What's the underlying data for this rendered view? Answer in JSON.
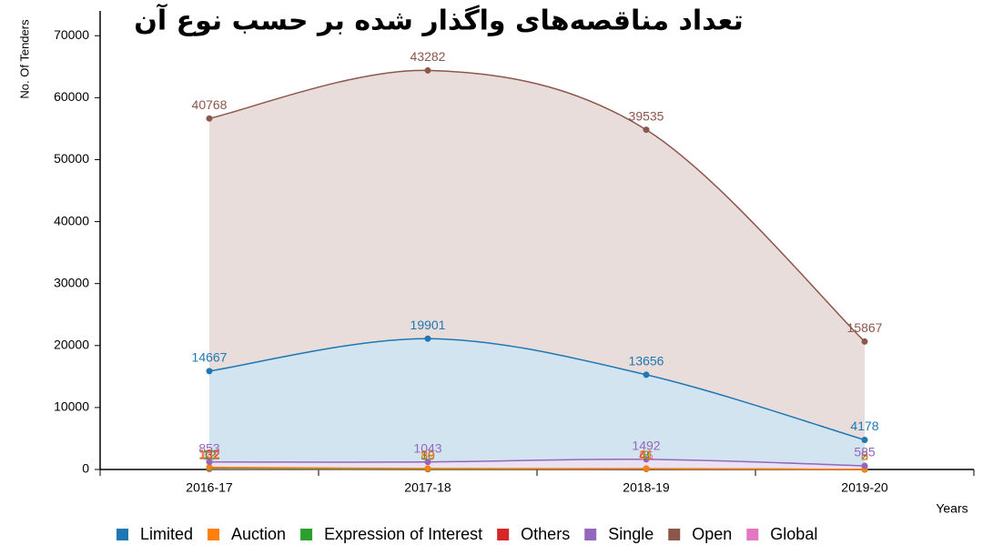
{
  "chart_data": {
    "type": "stacked-area",
    "title": "تعداد مناقصه‌های واگذار شده بر حسب نوع آن",
    "y_label": "No. Of Tenders",
    "x_label": "Years",
    "categories": [
      "2016-17",
      "2017-18",
      "2018-19",
      "2019-20"
    ],
    "series": [
      {
        "name": "Limited",
        "color": "#1f77b4",
        "values": [
          14667,
          19901,
          13656,
          4178
        ]
      },
      {
        "name": "Auction",
        "color": "#ff7f0e",
        "values": [
          152,
          89,
          31,
          5
        ]
      },
      {
        "name": "Expression of Interest",
        "color": "#2ca02c",
        "values": [
          12,
          10,
          8,
          2
        ]
      },
      {
        "name": "Others",
        "color": "#d62728",
        "values": [
          132,
          39,
          41,
          3
        ]
      },
      {
        "name": "Single",
        "color": "#9467bd",
        "values": [
          853,
          1043,
          1492,
          585
        ]
      },
      {
        "name": "Open",
        "color": "#8c564b",
        "values": [
          40768,
          43282,
          39535,
          15867
        ]
      },
      {
        "name": "Global",
        "color": "#e377c2",
        "values": [
          60,
          30,
          65,
          0
        ]
      }
    ],
    "stack_order": [
      "Global",
      "Others",
      "Expression of Interest",
      "Auction",
      "Single",
      "Limited",
      "Open"
    ],
    "ylim": [
      0,
      74000
    ],
    "yticks": [
      0,
      10000,
      20000,
      30000,
      40000,
      50000,
      60000,
      70000
    ],
    "legend": "bottom"
  }
}
